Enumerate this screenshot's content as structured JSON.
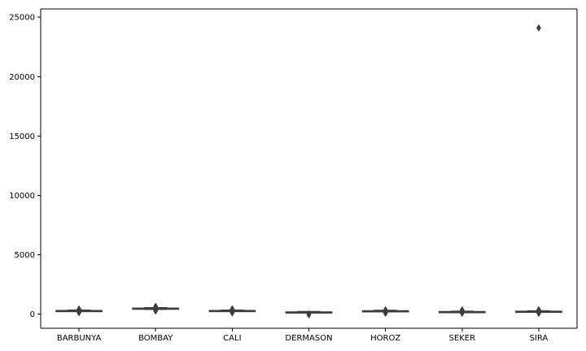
{
  "chart_data": {
    "type": "box",
    "title": "",
    "xlabel": "",
    "ylabel": "",
    "ylim": [
      -1200,
      25700
    ],
    "yticks": [
      0,
      5000,
      10000,
      15000,
      20000,
      25000
    ],
    "grid": false,
    "box_color": "#3d3d3d",
    "categories": [
      "BARBUNYA",
      "BOMBAY",
      "CALI",
      "DERMASON",
      "HOROZ",
      "SEKER",
      "SIRA"
    ],
    "boxes": [
      {
        "category": "BARBUNYA",
        "whisker_low": 220,
        "q1": 250,
        "median": 280,
        "q3": 300,
        "whisker_high": 330,
        "outliers": [
          110,
          150,
          380,
          420
        ]
      },
      {
        "category": "BOMBAY",
        "whisker_low": 380,
        "q1": 410,
        "median": 450,
        "q3": 500,
        "whisker_high": 540,
        "outliers": [
          250,
          320,
          600,
          650
        ]
      },
      {
        "category": "CALI",
        "whisker_low": 230,
        "q1": 260,
        "median": 280,
        "q3": 300,
        "whisker_high": 330,
        "outliers": [
          90,
          150,
          380,
          430
        ]
      },
      {
        "category": "DERMASON",
        "whisker_low": 110,
        "q1": 140,
        "median": 160,
        "q3": 180,
        "whisker_high": 210,
        "outliers": [
          -70,
          0
        ]
      },
      {
        "category": "HOROZ",
        "whisker_low": 200,
        "q1": 230,
        "median": 250,
        "q3": 280,
        "whisker_high": 320,
        "outliers": [
          60,
          120,
          350
        ]
      },
      {
        "category": "SEKER",
        "whisker_low": 140,
        "q1": 170,
        "median": 190,
        "q3": 210,
        "whisker_high": 240,
        "outliers": [
          60,
          100,
          300,
          350
        ]
      },
      {
        "category": "SIRA",
        "whisker_low": 170,
        "q1": 200,
        "median": 220,
        "q3": 240,
        "whisker_high": 270,
        "outliers": [
          60,
          120,
          320,
          360,
          24100
        ]
      }
    ]
  }
}
